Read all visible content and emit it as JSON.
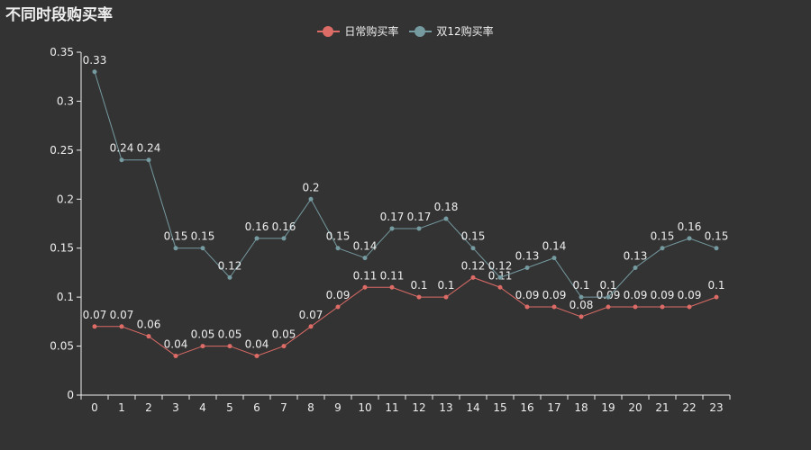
{
  "chart_data": {
    "type": "line",
    "title": "不同时段购买率",
    "categories": [
      "0",
      "1",
      "2",
      "3",
      "4",
      "5",
      "6",
      "7",
      "8",
      "9",
      "10",
      "11",
      "12",
      "13",
      "14",
      "15",
      "16",
      "17",
      "18",
      "19",
      "20",
      "21",
      "22",
      "23"
    ],
    "yticks": [
      "0",
      "0.05",
      "0.1",
      "0.15",
      "0.2",
      "0.25",
      "0.3",
      "0.35"
    ],
    "ylim": [
      0,
      0.35
    ],
    "grid": false,
    "legend_position": "top-center",
    "series": [
      {
        "name": "日常购买率",
        "color": "#dd6b66",
        "values": [
          0.07,
          0.07,
          0.06,
          0.04,
          0.05,
          0.05,
          0.04,
          0.05,
          0.07,
          0.09,
          0.11,
          0.11,
          0.1,
          0.1,
          0.12,
          0.11,
          0.09,
          0.09,
          0.08,
          0.09,
          0.09,
          0.09,
          0.09,
          0.1
        ],
        "labels": [
          "0.07",
          "0.07",
          "0.06",
          "0.04",
          "0.05",
          "0.05",
          "0.04",
          "0.05",
          "0.07",
          "0.09",
          "0.11",
          "0.11",
          "0.1",
          "0.1",
          "0.12",
          "0.11",
          "0.09",
          "0.09",
          "0.08",
          "0.09",
          "0.09",
          "0.09",
          "0.09",
          "0.1"
        ]
      },
      {
        "name": "双12购买率",
        "color": "#759aa0",
        "values": [
          0.33,
          0.24,
          0.24,
          0.15,
          0.15,
          0.12,
          0.16,
          0.16,
          0.2,
          0.15,
          0.14,
          0.17,
          0.17,
          0.18,
          0.15,
          0.12,
          0.13,
          0.14,
          0.1,
          0.1,
          0.13,
          0.15,
          0.16,
          0.15
        ],
        "labels": [
          "0.33",
          "0.24",
          "0.24",
          "0.15",
          "0.15",
          "0.12",
          "0.16",
          "0.16",
          "0.2",
          "0.15",
          "0.14",
          "0.17",
          "0.17",
          "0.18",
          "0.15",
          "0.12",
          "0.13",
          "0.14",
          "0.1",
          "0.1",
          "0.13",
          "0.15",
          "0.16",
          "0.15"
        ]
      }
    ],
    "axis_color": "#eeeeee",
    "label_color": "#eeeeee"
  }
}
